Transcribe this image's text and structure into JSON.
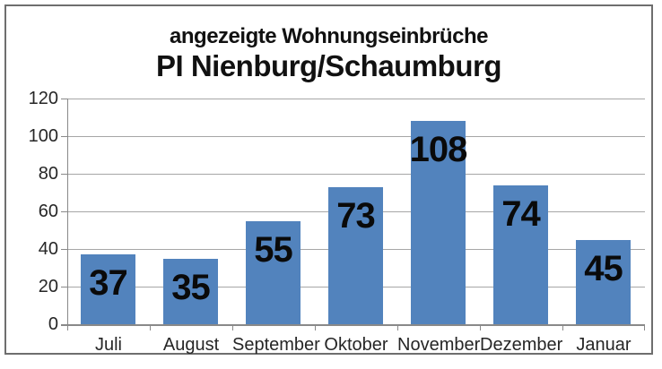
{
  "chart_data": {
    "type": "bar",
    "title": "angezeigte Wohnungseinbrüche",
    "subtitle": "PI Nienburg/Schaumburg",
    "categories": [
      "Juli",
      "August",
      "September",
      "Oktober",
      "November",
      "Dezember",
      "Januar"
    ],
    "values": [
      37,
      35,
      55,
      73,
      108,
      74,
      45
    ],
    "yticks": [
      120,
      100,
      80,
      60,
      40,
      20,
      0
    ],
    "ylim": [
      0,
      120
    ],
    "xlabel": "",
    "ylabel": "",
    "grid": "horizontal",
    "legend": "none",
    "bar_color": "#5283bd",
    "value_label_color": "#0a0a0a",
    "data_labels": "inside-top"
  }
}
